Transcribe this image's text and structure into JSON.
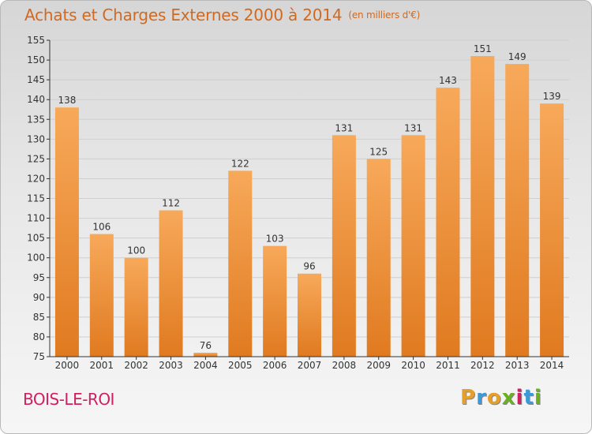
{
  "header": {
    "title": "Achats et Charges Externes 2000 à 2014",
    "unit": "(en milliers d'€)"
  },
  "footer": {
    "commune": "BOIS-LE-ROI",
    "brand_letters": [
      "P",
      "r",
      "o",
      "x",
      "i",
      "t",
      "i"
    ],
    "brand_colors": [
      "#e5a02b",
      "#3a9ad9",
      "#e5a02b",
      "#6ab023",
      "#d02060",
      "#3a9ad9",
      "#6ab023"
    ]
  },
  "colors": {
    "bar_light": "#f7a95a",
    "bar_dark": "#e07a20",
    "axis": "#333333",
    "grid": "#cfcfcf"
  },
  "chart_data": {
    "type": "bar",
    "categories": [
      "2000",
      "2001",
      "2002",
      "2003",
      "2004",
      "2005",
      "2006",
      "2007",
      "2008",
      "2009",
      "2010",
      "2011",
      "2012",
      "2013",
      "2014"
    ],
    "values": [
      138,
      106,
      100,
      112,
      76,
      122,
      103,
      96,
      131,
      125,
      131,
      143,
      151,
      149,
      139
    ],
    "title": "Achats et Charges Externes 2000 à 2014",
    "xlabel": "",
    "ylabel": "",
    "ylim": [
      75,
      155
    ],
    "yticks": [
      75,
      80,
      85,
      90,
      95,
      100,
      105,
      110,
      115,
      120,
      125,
      130,
      135,
      140,
      145,
      150,
      155
    ],
    "grid": true,
    "legend": "none"
  }
}
